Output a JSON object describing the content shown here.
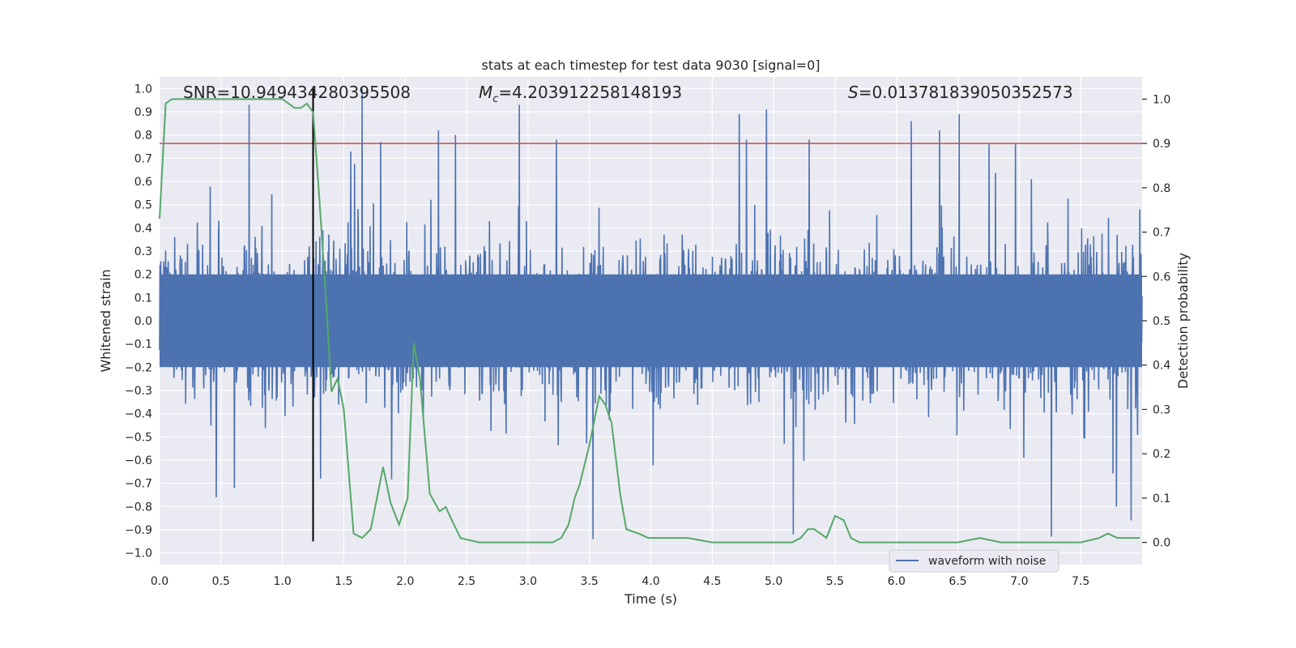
{
  "chart_data": {
    "type": "line",
    "title": "stats at each timestep for test data 9030 [signal=0]",
    "xlabel": "Time (s)",
    "ylabel": "Whitened strain",
    "y2label": "Detection probability",
    "xlim": [
      0,
      8
    ],
    "ylim": [
      -1.05,
      1.05
    ],
    "y2lim": [
      -0.05,
      1.05
    ],
    "xticks": [
      "0.0",
      "0.5",
      "1.0",
      "1.5",
      "2.0",
      "2.5",
      "3.0",
      "3.5",
      "4.0",
      "4.5",
      "5.0",
      "5.5",
      "6.0",
      "6.5",
      "7.0",
      "7.5"
    ],
    "yticks": [
      "1.0",
      "0.9",
      "0.8",
      "0.7",
      "0.6",
      "0.5",
      "0.4",
      "0.3",
      "0.2",
      "0.1",
      "0.0",
      "-0.1",
      "-0.2",
      "-0.3",
      "-0.4",
      "-0.5",
      "-0.6",
      "-0.7",
      "-0.8",
      "-0.9",
      "-1.0"
    ],
    "y2ticks": [
      "1.0",
      "0.9",
      "0.8",
      "0.7",
      "0.6",
      "0.5",
      "0.4",
      "0.3",
      "0.2",
      "0.1",
      "0.0"
    ],
    "annotations": {
      "snr": "SNR=10.949434280395508",
      "mc_symbol": "M",
      "mc_sub": "c",
      "mc_value": "=4.203912258148193",
      "s_symbol": "S",
      "s_value": "=0.013781839050352573"
    },
    "threshold_y2": 0.9,
    "threshold_color": "#c44e52",
    "vline_x": 1.25,
    "vline_color": "#000000",
    "grid": true,
    "legend_position": "lower-right",
    "series": [
      {
        "name": "waveform with noise",
        "axis": "left",
        "color": "#4c72b0",
        "noise_amplitude": 0.42,
        "peaks": [
          [
            0.73,
            0.93
          ],
          [
            1.65,
            1.0
          ],
          [
            2.93,
            0.93
          ],
          [
            2.27,
            0.82
          ],
          [
            4.72,
            0.89
          ],
          [
            4.94,
            0.91
          ],
          [
            6.12,
            0.86
          ],
          [
            6.35,
            0.82
          ],
          [
            6.51,
            0.89
          ],
          [
            5.16,
            -0.92
          ],
          [
            7.26,
            -0.93
          ],
          [
            7.91,
            -0.86
          ],
          [
            0.46,
            -0.76
          ],
          [
            3.53,
            -0.94
          ],
          [
            2.41,
            0.8
          ],
          [
            5.29,
            0.78
          ],
          [
            1.8,
            0.77
          ],
          [
            6.97,
            0.76
          ],
          [
            7.79,
            -0.8
          ],
          [
            1.31,
            -0.68
          ],
          [
            0.61,
            -0.72
          ]
        ]
      },
      {
        "name": "",
        "axis": "right",
        "color": "#55a868",
        "x": [
          0.0,
          0.05,
          0.1,
          0.2,
          0.3,
          0.5,
          0.7,
          0.9,
          1.0,
          1.05,
          1.1,
          1.15,
          1.2,
          1.25,
          1.3,
          1.35,
          1.4,
          1.45,
          1.5,
          1.58,
          1.65,
          1.72,
          1.82,
          1.88,
          1.95,
          2.02,
          2.07,
          2.12,
          2.2,
          2.28,
          2.33,
          2.38,
          2.45,
          2.6,
          2.8,
          3.0,
          3.2,
          3.27,
          3.33,
          3.38,
          3.42,
          3.5,
          3.58,
          3.63,
          3.68,
          3.75,
          3.8,
          3.9,
          3.98,
          4.05,
          4.2,
          4.3,
          4.5,
          4.8,
          4.9,
          5.0,
          5.1,
          5.15,
          5.22,
          5.28,
          5.33,
          5.43,
          5.5,
          5.57,
          5.63,
          5.7,
          6.0,
          6.5,
          6.68,
          6.85,
          7.0,
          7.5,
          7.65,
          7.72,
          7.8,
          7.9,
          7.98
        ],
        "y": [
          0.73,
          0.99,
          1.0,
          1.0,
          1.0,
          1.0,
          1.0,
          1.0,
          1.0,
          0.99,
          0.98,
          0.98,
          0.99,
          0.97,
          0.78,
          0.57,
          0.34,
          0.37,
          0.3,
          0.02,
          0.01,
          0.03,
          0.17,
          0.09,
          0.04,
          0.1,
          0.45,
          0.37,
          0.11,
          0.07,
          0.08,
          0.05,
          0.01,
          0.0,
          0.0,
          0.0,
          0.0,
          0.01,
          0.04,
          0.1,
          0.13,
          0.22,
          0.33,
          0.31,
          0.27,
          0.11,
          0.03,
          0.02,
          0.01,
          0.01,
          0.01,
          0.01,
          0.0,
          0.0,
          0.0,
          0.0,
          0.0,
          0.0,
          0.01,
          0.03,
          0.03,
          0.01,
          0.06,
          0.05,
          0.01,
          0.0,
          0.0,
          0.0,
          0.01,
          0.0,
          0.0,
          0.0,
          0.01,
          0.02,
          0.01,
          0.01,
          0.01
        ]
      }
    ]
  }
}
